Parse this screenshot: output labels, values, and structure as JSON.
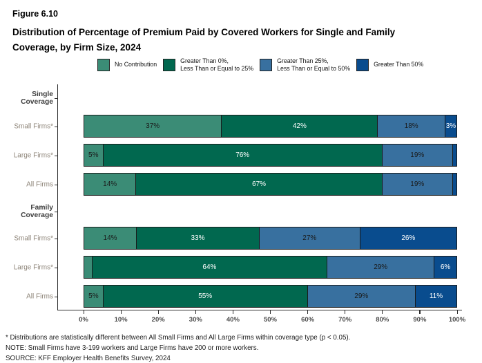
{
  "figure_label": "Figure 6.10",
  "title": "Distribution of Percentage of Premium Paid by Covered Workers for Single and Family\nCoverage, by Firm Size, 2024",
  "footnotes": [
    "* Distributions are statistically different between All Small Firms and All Large Firms within coverage type (p < 0.05).",
    "NOTE: Small Firms have 3-199 workers and Large Firms have 200 or more workers.",
    "SOURCE: KFF Employer Health Benefits Survey, 2024"
  ],
  "chart_data": {
    "type": "bar",
    "orientation": "horizontal-stacked",
    "xlabel": "",
    "ylabel": "",
    "xlim": [
      0,
      100
    ],
    "grid": false,
    "legend_position": "top",
    "series_names": [
      "No Contribution",
      "Greater Than 0%, Less Than or Equal to 25%",
      "Greater Than 25%, Less Than or Equal to 50%",
      "Greater Than 50%"
    ],
    "legend": [
      {
        "label": "No Contribution",
        "color": "#3B8C76"
      },
      {
        "label": "Greater Than 0%,\nLess Than or Equal to 25%",
        "color": "#01684F"
      },
      {
        "label": "Greater Than 25%,\nLess Than or Equal to 50%",
        "color": "#38709F"
      },
      {
        "label": "Greater Than 50%",
        "color": "#094C8E"
      }
    ],
    "colors": [
      "#3B8C76",
      "#01684F",
      "#38709F",
      "#094C8E"
    ],
    "label_text_colors": [
      "#1a1a1a",
      "#ffffff",
      "#1a1a1a",
      "#ffffff"
    ],
    "x_ticks": [
      "0%",
      "10%",
      "20%",
      "30%",
      "40%",
      "50%",
      "60%",
      "70%",
      "80%",
      "90%",
      "100%"
    ],
    "groups": [
      {
        "label": "Single Coverage",
        "rows": [
          {
            "label": "Small Firms*",
            "values": [
              37,
              42,
              18,
              3
            ],
            "segment_labels": [
              "37%",
              "42%",
              "18%",
              "3%"
            ]
          },
          {
            "label": "Large Firms*",
            "values": [
              5,
              76,
              19,
              1
            ],
            "segment_labels": [
              "5%",
              "76%",
              "19%",
              ""
            ]
          },
          {
            "label": "All Firms",
            "values": [
              14,
              67,
              19,
              1
            ],
            "segment_labels": [
              "14%",
              "67%",
              "19%",
              ""
            ]
          }
        ]
      },
      {
        "label": "Family Coverage",
        "rows": [
          {
            "label": "Small Firms*",
            "values": [
              14,
              33,
              27,
              26
            ],
            "segment_labels": [
              "14%",
              "33%",
              "27%",
              "26%"
            ]
          },
          {
            "label": "Large Firms*",
            "values": [
              2,
              64,
              29,
              6
            ],
            "segment_labels": [
              "",
              "64%",
              "29%",
              "6%"
            ]
          },
          {
            "label": "All Firms",
            "values": [
              5,
              55,
              29,
              11
            ],
            "segment_labels": [
              "5%",
              "55%",
              "29%",
              "11%"
            ]
          }
        ]
      }
    ]
  }
}
